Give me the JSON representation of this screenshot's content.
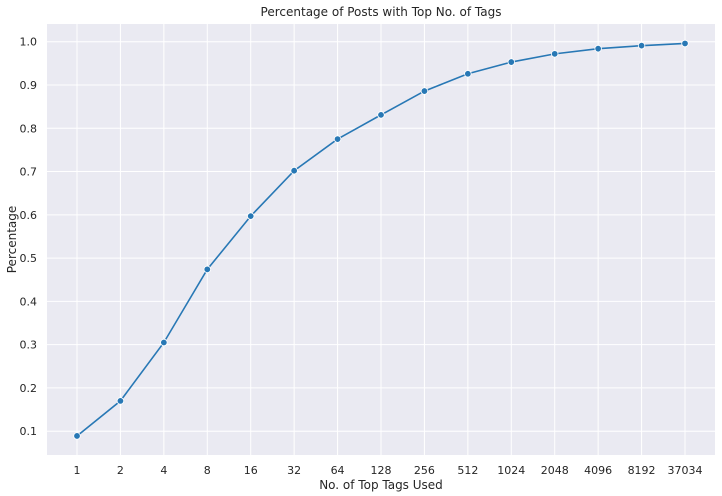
{
  "chart_data": {
    "type": "line",
    "title": "Percentage of Posts with Top No. of Tags",
    "xlabel": "No. of Top Tags Used",
    "ylabel": "Percentage",
    "categories": [
      "1",
      "2",
      "4",
      "8",
      "16",
      "32",
      "64",
      "128",
      "256",
      "512",
      "1024",
      "2048",
      "4096",
      "8192",
      "37034"
    ],
    "series": [
      {
        "values": [
          0.089,
          0.17,
          0.305,
          0.474,
          0.597,
          0.702,
          0.775,
          0.831,
          0.886,
          0.926,
          0.953,
          0.972,
          0.984,
          0.991,
          0.996
        ]
      }
    ],
    "y_ticks": [
      "0.1",
      "0.2",
      "0.3",
      "0.4",
      "0.5",
      "0.6",
      "0.7",
      "0.8",
      "0.9",
      "1.0"
    ],
    "ylim": [
      0.045,
      1.041
    ],
    "grid": true,
    "marker": "circle",
    "colors": {
      "background": "#eaeaf2",
      "grid": "#ffffff",
      "line": "#2878b5"
    }
  }
}
